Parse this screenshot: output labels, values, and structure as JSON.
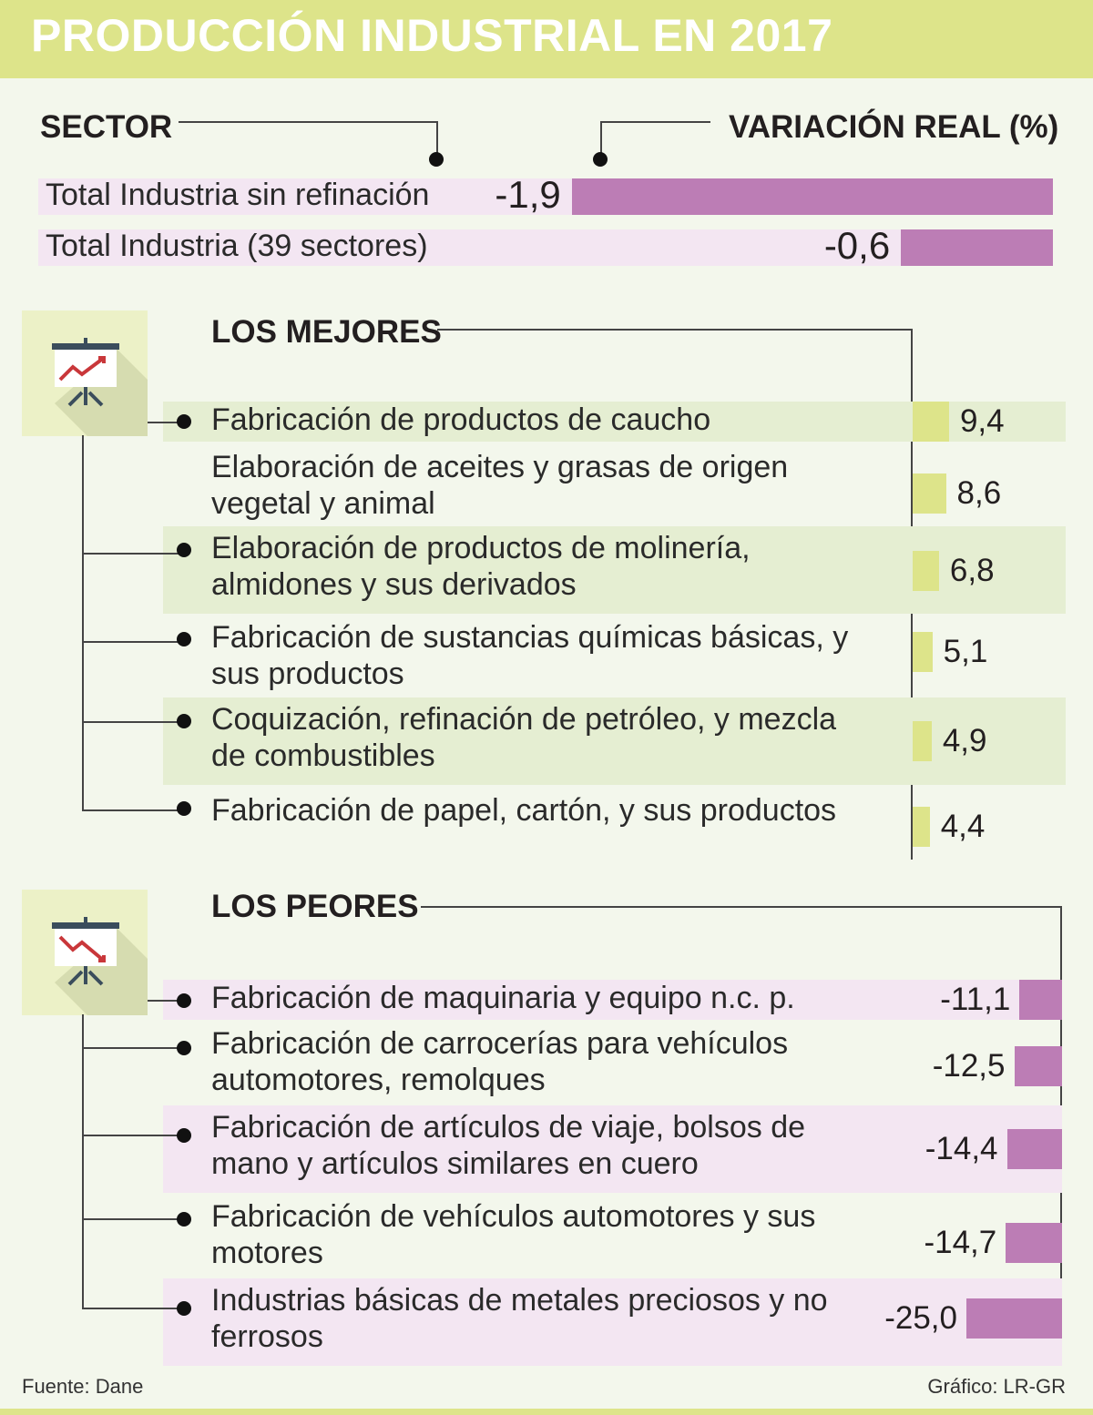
{
  "title": "PRODUCCIÓN INDUSTRIAL EN 2017",
  "header": {
    "sector": "SECTOR",
    "variation": "VARIACIÓN REAL (%)"
  },
  "colors": {
    "green_bar": "#dde48a",
    "purple_bar": "#bc7db5",
    "green_row": "#e5eed2",
    "purple_row": "#f3e6f2",
    "icon_bg": "#ecf1c7"
  },
  "chart_data": [
    {
      "type": "bar",
      "title": "Total",
      "categories": [
        "Total Industria sin refinación",
        "Total Industria (39 sectores)"
      ],
      "values": [
        -1.9,
        -0.6
      ],
      "labels": [
        "-1,9",
        "-0,6"
      ]
    },
    {
      "type": "bar",
      "title": "LOS MEJORES",
      "categories": [
        [
          "Fabricación de productos de caucho"
        ],
        [
          "Elaboración de aceites y grasas de origen",
          "vegetal y animal"
        ],
        [
          "Elaboración de productos de molinería,",
          "almidones y sus derivados"
        ],
        [
          "Fabricación de sustancias químicas básicas, y",
          "sus productos"
        ],
        [
          "Coquización, refinación de petróleo, y mezcla",
          "de combustibles"
        ],
        [
          "Fabricación de papel, cartón, y sus productos"
        ]
      ],
      "values": [
        9.4,
        8.6,
        6.8,
        5.1,
        4.9,
        4.4
      ],
      "labels": [
        "9,4",
        "8,6",
        "6,8",
        "5,1",
        "4,9",
        "4,4"
      ]
    },
    {
      "type": "bar",
      "title": "LOS PEORES",
      "categories": [
        [
          "Fabricación de maquinaria y equipo n.c. p."
        ],
        [
          "Fabricación de carrocerías para vehículos",
          "automotores, remolques"
        ],
        [
          "Fabricación de artículos de viaje, bolsos de",
          "mano y artículos similares en cuero"
        ],
        [
          "Fabricación de vehículos automotores y sus",
          "motores"
        ],
        [
          "Industrias básicas de metales preciosos y no",
          "ferrosos"
        ]
      ],
      "values": [
        -11.1,
        -12.5,
        -14.4,
        -14.7,
        -25.0
      ],
      "labels": [
        "-11,1",
        "-12,5",
        "-14,4",
        "-14,7",
        "-25,0"
      ]
    }
  ],
  "footer": {
    "source": "Fuente: Dane",
    "credit": "Gráfico: LR-GR"
  }
}
